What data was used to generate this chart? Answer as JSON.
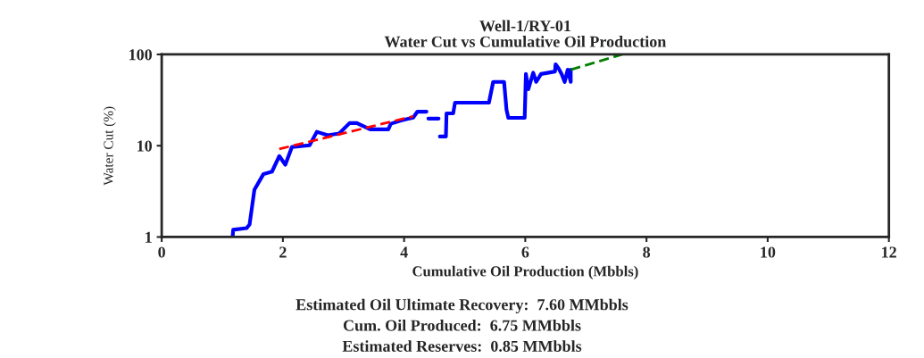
{
  "chart_data": {
    "type": "line",
    "title": "Well-1/RY-01\nWater Cut vs Cumulative Oil Production",
    "xlabel": "Cumulative Oil Production (Mbbls)",
    "ylabel": "Water Cut (%)",
    "xlim": [
      0,
      12
    ],
    "xticks": [
      0,
      2,
      4,
      6,
      8,
      10,
      12
    ],
    "ylim": [
      1,
      100
    ],
    "yticks": [
      1,
      10,
      100
    ],
    "log": "y",
    "grid": false,
    "legend": false,
    "series": [
      {
        "color": "#0000ff",
        "line_style": "solid",
        "x": [
          1.17,
          1.18,
          1.4,
          1.45,
          1.53,
          1.68,
          1.82,
          1.94,
          2.04,
          2.15,
          2.44,
          2.56,
          2.74,
          2.93,
          3.1,
          3.22,
          3.44,
          3.74,
          3.78,
          3.96,
          4.15,
          4.22,
          4.25,
          4.37,
          4.38,
          4.4,
          4.57,
          4.58,
          4.59,
          4.69,
          4.7,
          4.81,
          4.84,
          5.4,
          5.47,
          5.65,
          5.69,
          5.72,
          5.99,
          6.01,
          6.05,
          6.13,
          6.18,
          6.26,
          6.49,
          6.5,
          6.55,
          6.6,
          6.65,
          6.7,
          6.75,
          6.75
        ],
        "values": [
          1.0,
          1.2,
          1.25,
          1.37,
          3.3,
          4.9,
          5.2,
          7.7,
          6.2,
          9.7,
          10.1,
          14.2,
          13,
          13.6,
          17.7,
          17.7,
          15.1,
          15.1,
          17.4,
          19,
          20.3,
          23.6,
          23.6,
          23.6,
          null,
          19.8,
          19.8,
          null,
          12.6,
          12.6,
          22.6,
          22.6,
          29.6,
          29.6,
          50,
          50,
          24.8,
          20.2,
          20.2,
          61,
          41.6,
          63,
          50,
          61,
          65,
          78,
          70,
          61,
          50,
          68,
          50,
          68
        ]
      },
      {
        "color": "#ff0000",
        "line_style": "dashed",
        "x": [
          1.94,
          4.15
        ],
        "values": [
          9.2,
          21
        ]
      },
      {
        "color": "#008000",
        "line_style": "dashed",
        "x": [
          6.75,
          7.6
        ],
        "values": [
          68,
          100
        ]
      }
    ],
    "annotations": [
      "Estimated Oil Ultimate Recovery:  7.60 MMbbls",
      "Cum. Oil Produced:  6.75 MMbbls",
      "Estimated Reserves:  0.85 MMbbls"
    ]
  }
}
